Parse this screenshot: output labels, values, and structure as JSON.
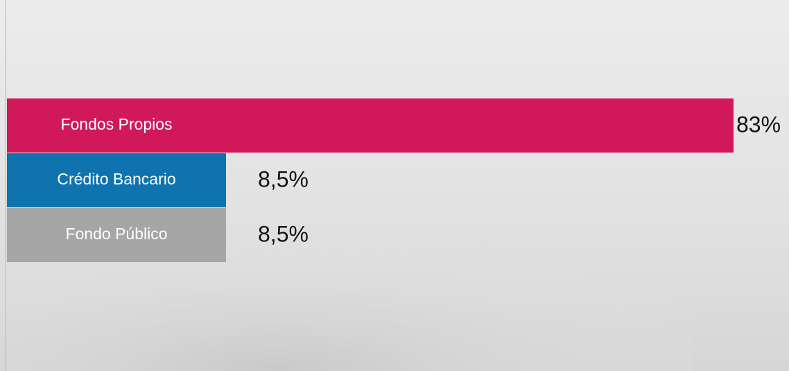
{
  "chart_data": {
    "type": "bar",
    "orientation": "horizontal",
    "categories": [
      "Fondos Propios",
      "Crédito Bancario",
      "Fondo Público"
    ],
    "values": [
      83,
      8.5,
      8.5
    ],
    "value_labels": [
      "83%",
      "8,5%",
      "8,5%"
    ],
    "colors": [
      "#d0185a",
      "#0f73b0",
      "#a6a6a6"
    ]
  }
}
